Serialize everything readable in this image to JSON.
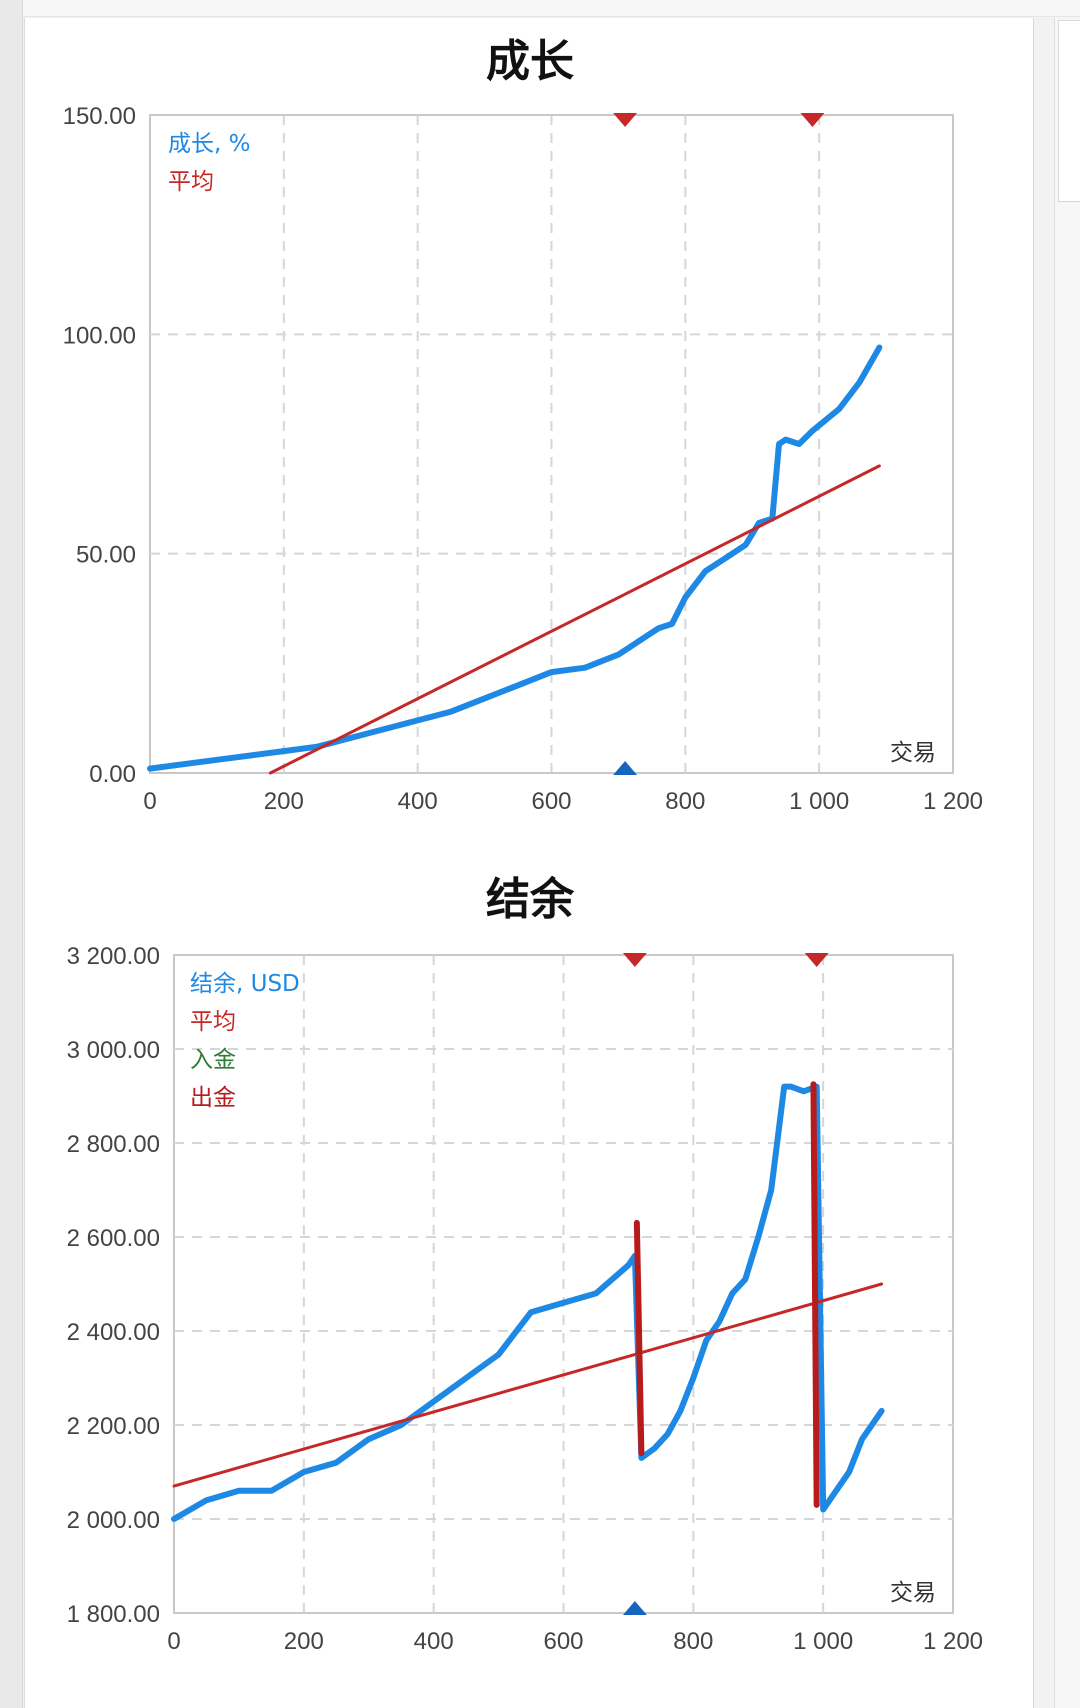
{
  "chart_data": [
    {
      "type": "line",
      "title": "成长",
      "xlabel": "交易",
      "xlim": [
        0,
        1200
      ],
      "ylim": [
        0,
        150
      ],
      "xticks": [
        "0",
        "200",
        "400",
        "600",
        "800",
        "1 000",
        "1 200"
      ],
      "yticks": [
        "0.00",
        "50.00",
        "100.00",
        "150.00"
      ],
      "grid": true,
      "legend_position": "top-left",
      "legend": [
        {
          "label": "成长, %",
          "color": "#1e88e5"
        },
        {
          "label": "平均",
          "color": "#c62828"
        }
      ],
      "series": [
        {
          "name": "成长, %",
          "color": "#1e88e5",
          "x": [
            0,
            50,
            100,
            150,
            200,
            250,
            300,
            350,
            400,
            450,
            500,
            550,
            600,
            650,
            700,
            730,
            760,
            780,
            800,
            830,
            860,
            890,
            910,
            930,
            940,
            950,
            970,
            990,
            1030,
            1060,
            1090
          ],
          "y": [
            1,
            2,
            3,
            4,
            5,
            6,
            8,
            10,
            12,
            14,
            17,
            20,
            23,
            24,
            27,
            30,
            33,
            34,
            40,
            46,
            49,
            52,
            57,
            58,
            75,
            76,
            75,
            78,
            83,
            89,
            97
          ]
        },
        {
          "name": "平均",
          "color": "#c62828",
          "x": [
            180,
            1090
          ],
          "y": [
            0,
            70
          ]
        }
      ],
      "markers_top": [
        {
          "x": 710,
          "color": "#c62828"
        },
        {
          "x": 990,
          "color": "#c62828"
        }
      ],
      "markers_bottom": [
        {
          "x": 710,
          "color": "#1565c0"
        }
      ]
    },
    {
      "type": "line",
      "title": "结余",
      "xlabel": "交易",
      "xlim": [
        0,
        1200
      ],
      "ylim": [
        1800,
        3200
      ],
      "xticks": [
        "0",
        "200",
        "400",
        "600",
        "800",
        "1 000",
        "1 200"
      ],
      "yticks": [
        "1 800.00",
        "2 000.00",
        "2 200.00",
        "2 400.00",
        "2 600.00",
        "2 800.00",
        "3 000.00",
        "3 200.00"
      ],
      "grid": true,
      "legend_position": "top-left",
      "legend": [
        {
          "label": "结余, USD",
          "color": "#1e88e5"
        },
        {
          "label": "平均",
          "color": "#c62828"
        },
        {
          "label": "入金",
          "color": "#2e7d32"
        },
        {
          "label": "出金",
          "color": "#b71c1c"
        }
      ],
      "series": [
        {
          "name": "结余, USD",
          "color": "#1e88e5",
          "x": [
            0,
            50,
            100,
            150,
            200,
            250,
            300,
            350,
            400,
            450,
            500,
            550,
            600,
            650,
            700,
            710,
            720,
            740,
            760,
            780,
            800,
            820,
            840,
            860,
            880,
            900,
            920,
            940,
            950,
            970,
            990,
            1000,
            1020,
            1040,
            1060,
            1090
          ],
          "y": [
            2000,
            2040,
            2060,
            2060,
            2100,
            2120,
            2170,
            2200,
            2250,
            2300,
            2350,
            2440,
            2460,
            2480,
            2540,
            2560,
            2130,
            2150,
            2180,
            2230,
            2300,
            2380,
            2420,
            2480,
            2510,
            2600,
            2700,
            2920,
            2920,
            2910,
            2920,
            2020,
            2060,
            2100,
            2170,
            2230
          ]
        },
        {
          "name": "平均",
          "color": "#c62828",
          "x": [
            0,
            1090
          ],
          "y": [
            2070,
            2500
          ]
        },
        {
          "name": "出金",
          "color": "#b71c1c",
          "segments": [
            {
              "x": [
                713,
                720
              ],
              "y": [
                2630,
                2140
              ]
            },
            {
              "x": [
                985,
                990
              ],
              "y": [
                2925,
                2030
              ]
            }
          ]
        }
      ],
      "markers_top": [
        {
          "x": 710,
          "color": "#c62828"
        },
        {
          "x": 990,
          "color": "#c62828"
        }
      ],
      "markers_bottom": [
        {
          "x": 710,
          "color": "#1565c0"
        }
      ]
    }
  ]
}
